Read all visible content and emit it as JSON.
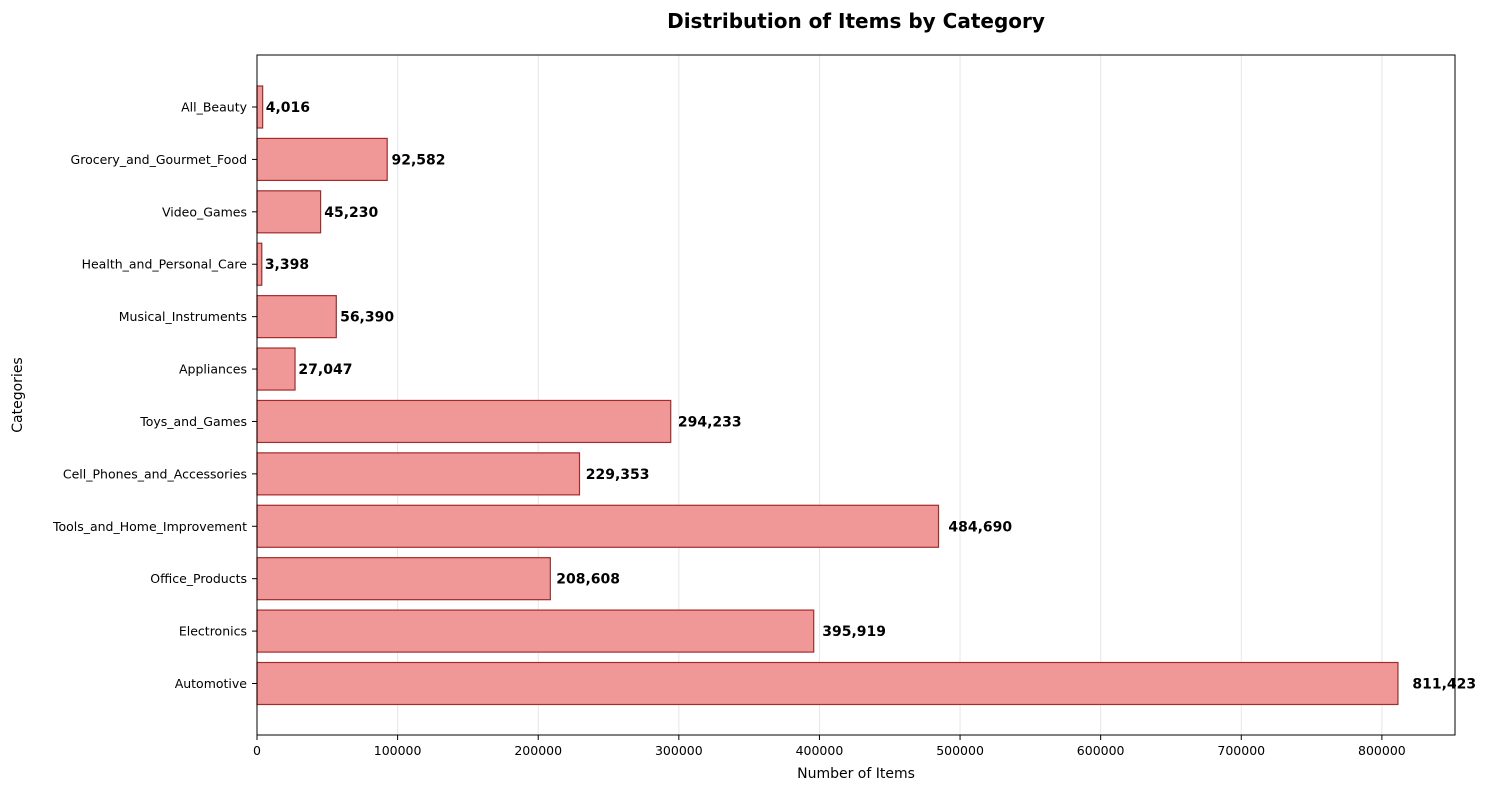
{
  "chart_data": {
    "type": "bar",
    "orientation": "horizontal",
    "title": "Distribution of Items by Category",
    "xlabel": "Number of Items",
    "ylabel": "Categories",
    "categories": [
      "Automotive",
      "Electronics",
      "Office_Products",
      "Tools_and_Home_Improvement",
      "Cell_Phones_and_Accessories",
      "Toys_and_Games",
      "Appliances",
      "Musical_Instruments",
      "Health_and_Personal_Care",
      "Video_Games",
      "Grocery_and_Gourmet_Food",
      "All_Beauty"
    ],
    "values": [
      811423,
      395919,
      208608,
      484690,
      229353,
      294233,
      27047,
      56390,
      3398,
      45230,
      92582,
      4016
    ],
    "value_labels": [
      "811,423",
      "395,919",
      "208,608",
      "484,690",
      "229,353",
      "294,233",
      "27,047",
      "56,390",
      "3,398",
      "45,230",
      "92,582",
      "4,016"
    ],
    "xlim": [
      0,
      851994
    ],
    "xticks": [
      0,
      100000,
      200000,
      300000,
      400000,
      500000,
      600000,
      700000,
      800000
    ],
    "xtick_labels": [
      "0",
      "100000",
      "200000",
      "300000",
      "400000",
      "500000",
      "600000",
      "700000",
      "800000"
    ],
    "grid": "x-axis vertical lines",
    "legend": "none",
    "colors": {
      "bar_fill": "#f09898",
      "bar_edge": "#a52a2a",
      "grid": "#e6e6e6",
      "axis": "#000000",
      "text": "#000000"
    }
  }
}
